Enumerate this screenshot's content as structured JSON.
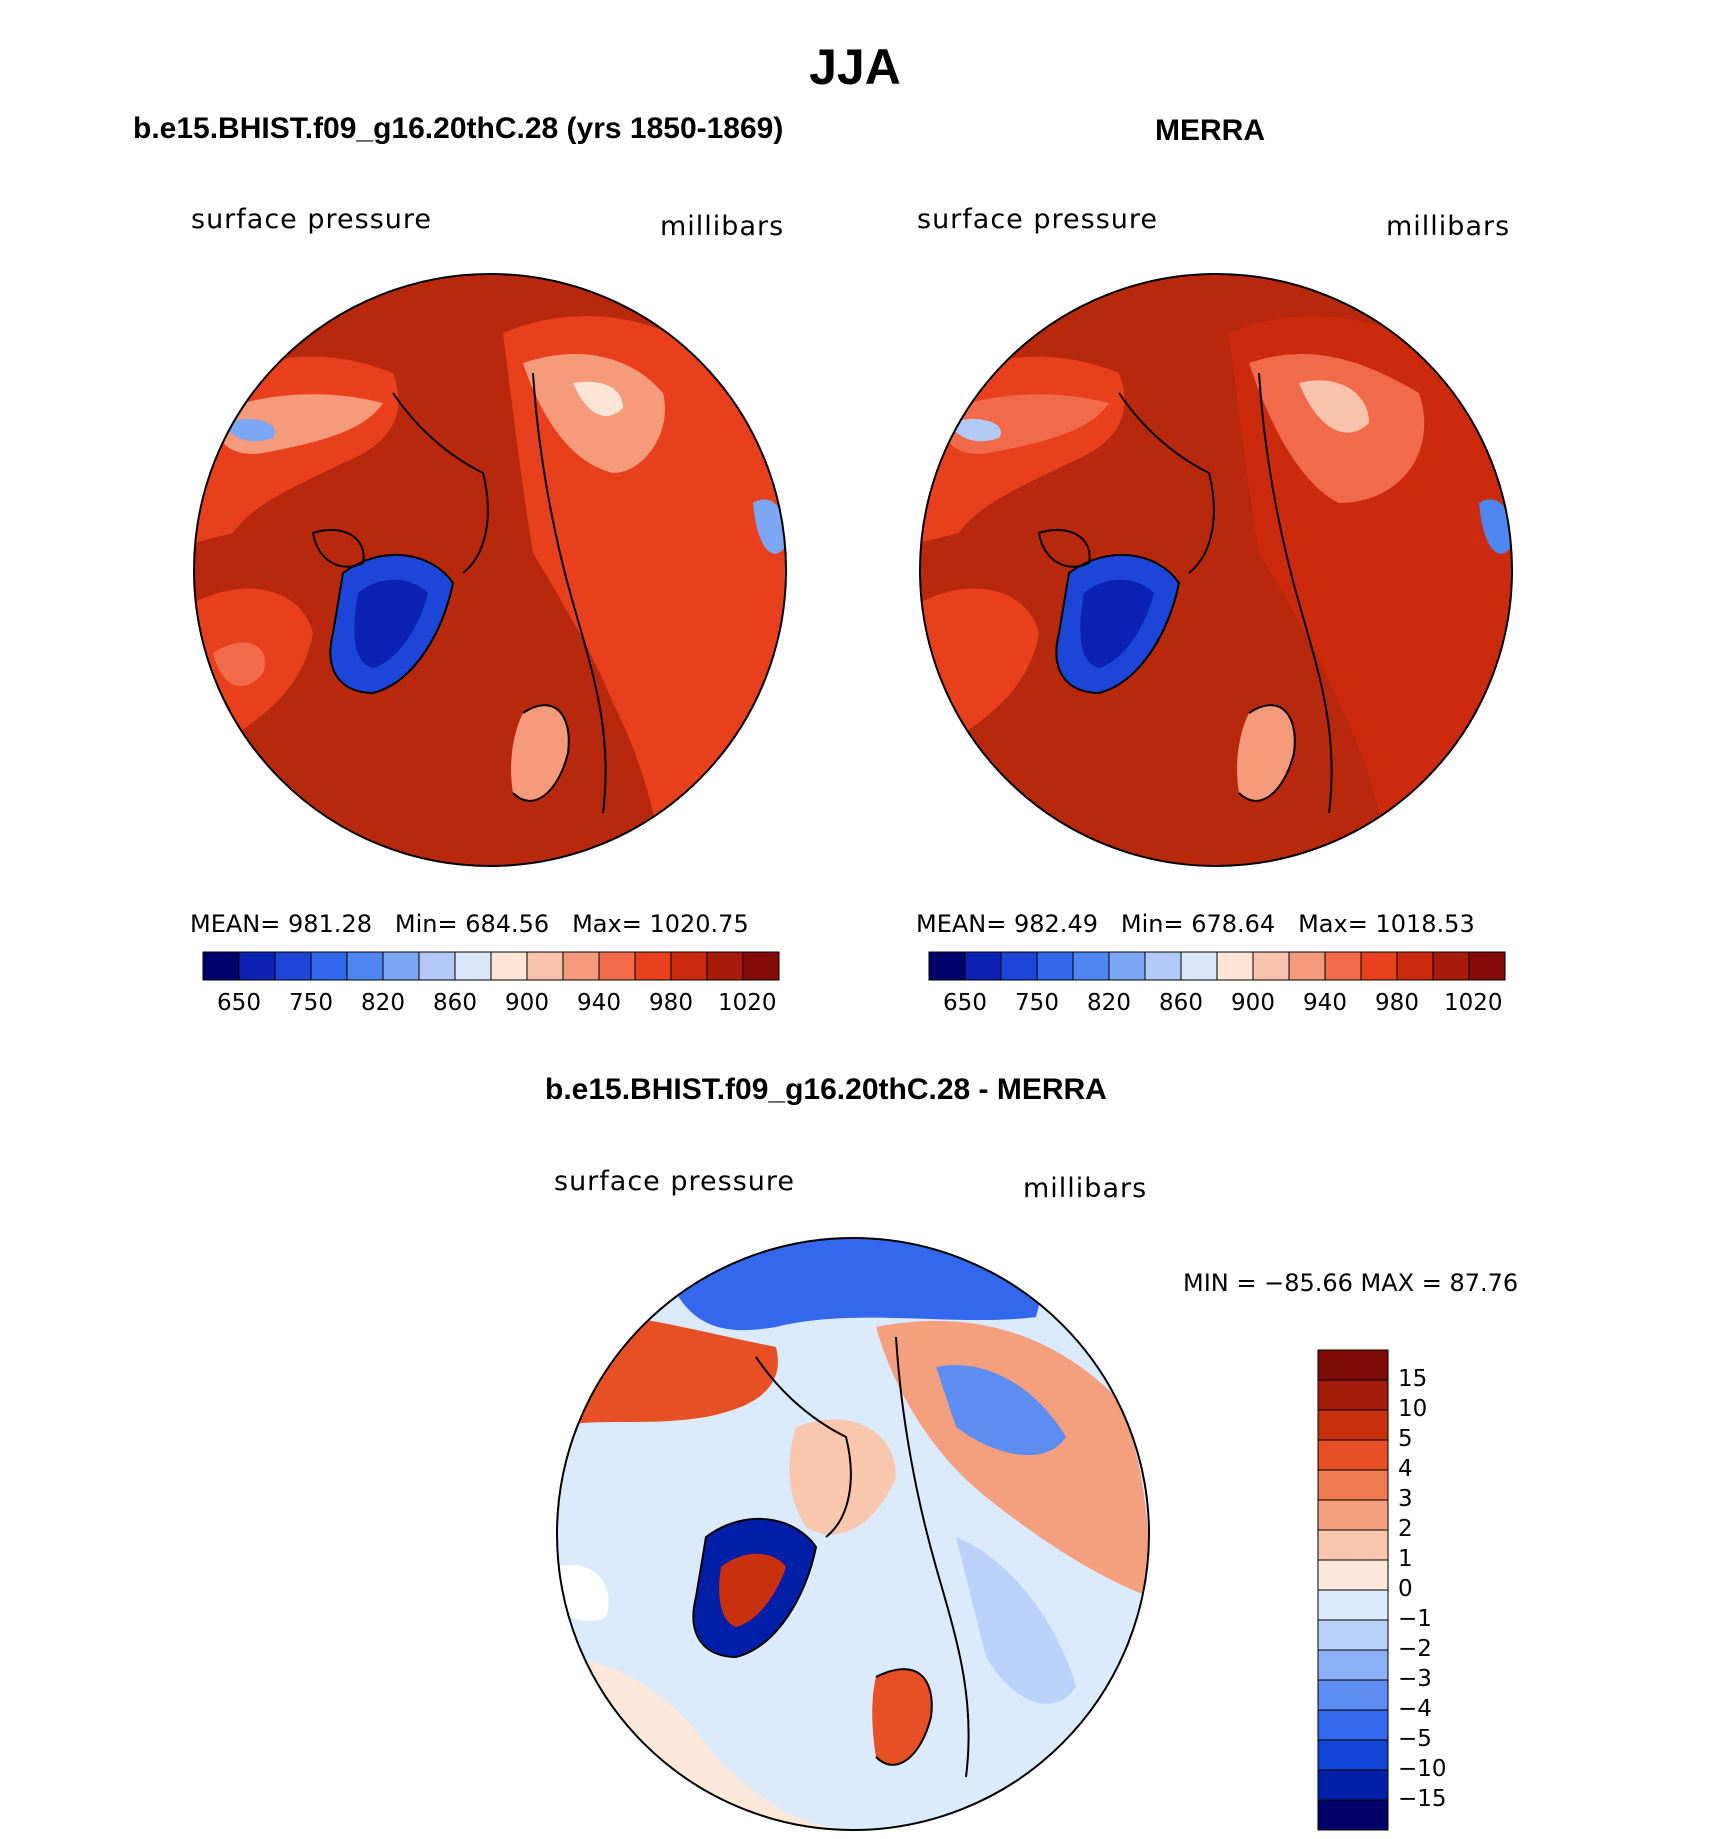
{
  "title": "JJA",
  "colors": {
    "abs_scale": [
      "#00006b",
      "#0b22b4",
      "#1d45d8",
      "#2f66ea",
      "#4f86f0",
      "#7da6f5",
      "#b3c9f8",
      "#dbe8fb",
      "#fde6d6",
      "#f9c2ad",
      "#f59b7b",
      "#f16b4a",
      "#e8401d",
      "#cc2a0d",
      "#a81b0a",
      "#840b07"
    ],
    "diff_scale": [
      "#000066",
      "#001fa8",
      "#1244d8",
      "#3367ec",
      "#5d8cf3",
      "#8cb0f7",
      "#bad2fa",
      "#dbeafc",
      "#fde9dc",
      "#f9c6ae",
      "#f4a07f",
      "#ee7a4f",
      "#e74f24",
      "#c9300d",
      "#a51d0a",
      "#7f0b06"
    ],
    "ocean": "#b8280c",
    "land_mid": "#d8421a"
  },
  "panels": [
    {
      "title": "b.e15.BHIST.f09_g16.20thC.28 (yrs 1850-1869)",
      "left_label": "surface pressure",
      "right_label": "millibars",
      "stats": {
        "mean_label": "MEAN=",
        "mean": "981.28",
        "min_label": "Min=",
        "min": "684.56",
        "max_label": "Max=",
        "max": "1020.75"
      },
      "ticks": [
        "650",
        "750",
        "820",
        "860",
        "900",
        "940",
        "980",
        "1020"
      ]
    },
    {
      "title": "MERRA",
      "left_label": "surface pressure",
      "right_label": "millibars",
      "stats": {
        "mean_label": "MEAN=",
        "mean": "982.49",
        "min_label": "Min=",
        "min": "678.64",
        "max_label": "Max=",
        "max": "1018.53"
      },
      "ticks": [
        "650",
        "750",
        "820",
        "860",
        "900",
        "940",
        "980",
        "1020"
      ]
    }
  ],
  "diff_panel": {
    "title": "b.e15.BHIST.f09_g16.20thC.28 - MERRA",
    "left_label": "surface pressure",
    "right_label": "millibars",
    "minmax_text": "MIN = −85.66 MAX =   87.76",
    "ticks": [
      "15",
      "10",
      "5",
      "4",
      "3",
      "2",
      "1",
      "0",
      "−1",
      "−2",
      "−3",
      "−4",
      "−5",
      "−10",
      "−15"
    ]
  }
}
